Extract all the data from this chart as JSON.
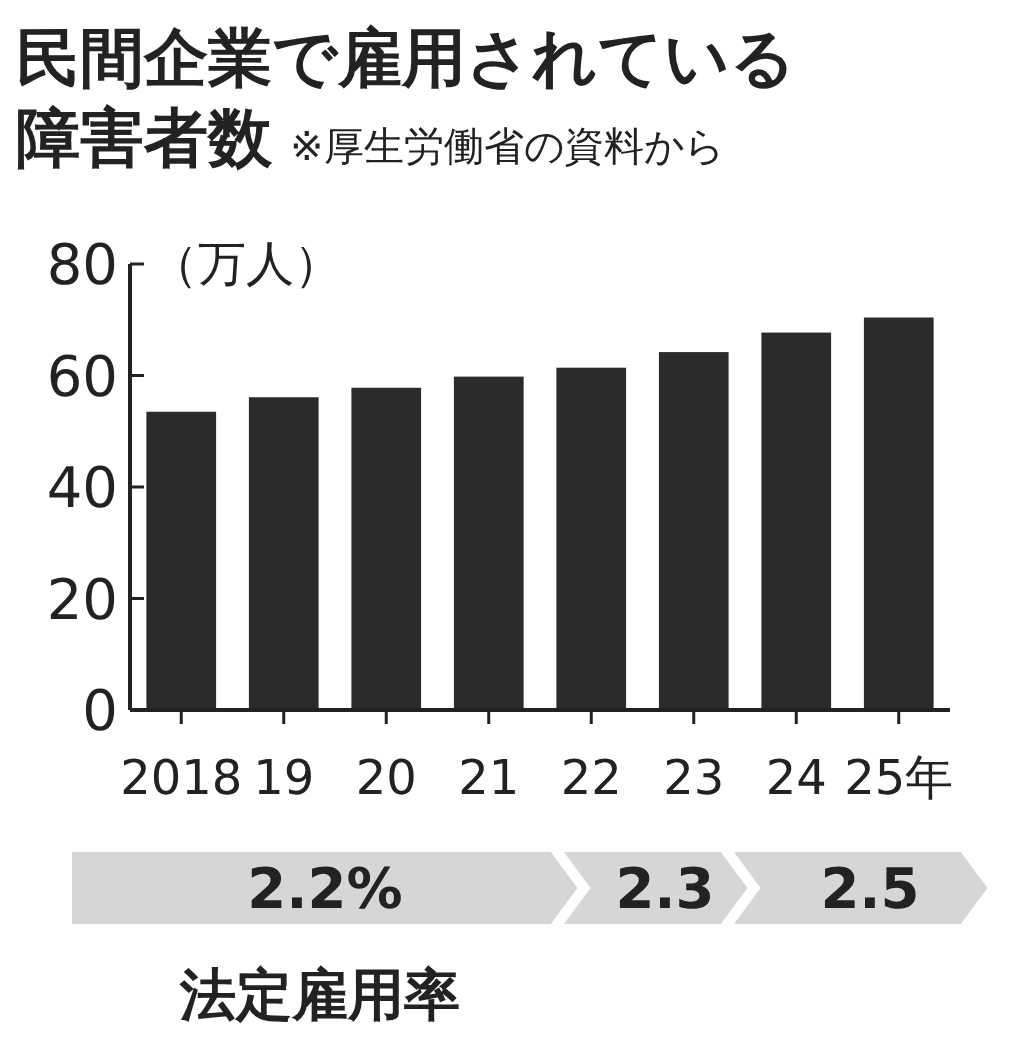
{
  "chart_data": {
    "type": "bar",
    "title": "民間企業で雇用されている障害者数",
    "subtitle": "※厚生労働省の資料から",
    "ylabel": "（万人）",
    "categories": [
      "2018",
      "19",
      "20",
      "21",
      "22",
      "23",
      "24",
      "25年"
    ],
    "values": [
      53.5,
      56.1,
      57.8,
      59.8,
      61.4,
      64.2,
      67.7,
      70.4
    ],
    "color": "#2b2b2b",
    "ylim": [
      0,
      80
    ],
    "yticks": [
      0,
      20,
      40,
      60,
      80
    ],
    "grid": false,
    "annotations": [
      "2.2%",
      "2.3",
      "2.5",
      "法定雇用率"
    ]
  }
}
